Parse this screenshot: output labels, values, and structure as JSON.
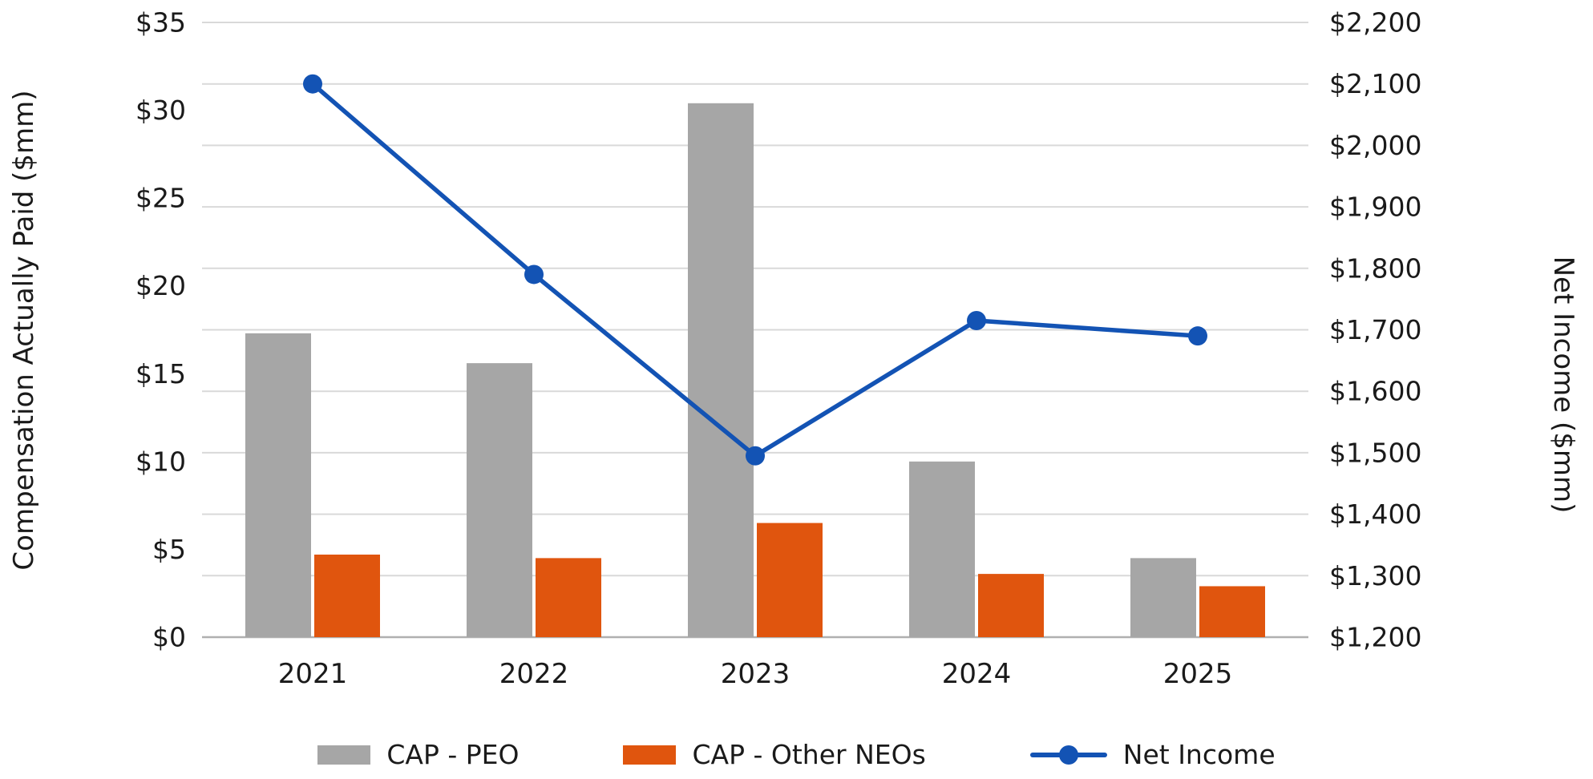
{
  "chart_data": {
    "type": "combo",
    "title": "",
    "categories": [
      "2021",
      "2022",
      "2023",
      "2024",
      "2025"
    ],
    "series": [
      {
        "name": "CAP - PEO",
        "type": "bar",
        "axis": "left",
        "color": "#a6a6a6",
        "values": [
          17.3,
          15.6,
          30.4,
          10.0,
          4.5
        ]
      },
      {
        "name": "CAP - Other NEOs",
        "type": "bar",
        "axis": "left",
        "color": "#e0550e",
        "values": [
          4.7,
          4.5,
          6.5,
          3.6,
          2.9
        ]
      },
      {
        "name": "Net Income",
        "type": "line",
        "axis": "right",
        "color": "#1353b4",
        "values": [
          2100,
          1790,
          1495,
          1715,
          1690
        ]
      }
    ],
    "left_axis": {
      "label": "Compensation Actually Paid ($mm)",
      "min": 0,
      "max": 35,
      "step": 5,
      "ticks": [
        "$0",
        "$5",
        "$10",
        "$15",
        "$20",
        "$25",
        "$30",
        "$35"
      ]
    },
    "right_axis": {
      "label": "Net Income ($mm)",
      "min": 1200,
      "max": 2200,
      "step": 100,
      "ticks": [
        "$1,200",
        "$1,300",
        "$1,400",
        "$1,500",
        "$1,600",
        "$1,700",
        "$1,800",
        "$1,900",
        "$2,000",
        "$2,100",
        "$2,200"
      ]
    },
    "grid": true,
    "legend_position": "bottom",
    "colors": {
      "grid": "#d9d9d9",
      "axis_line": "#b0b0b0",
      "text": "#1a1a1a",
      "background": "#ffffff"
    }
  }
}
